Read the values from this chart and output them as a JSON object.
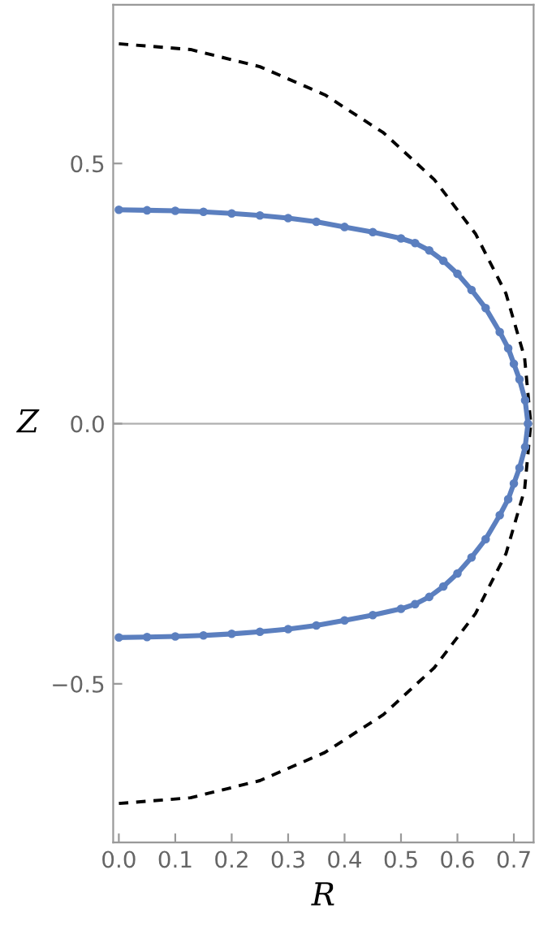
{
  "chart_data": {
    "type": "line",
    "xlabel": "R",
    "ylabel": "Z",
    "xlim": [
      -0.01,
      0.735
    ],
    "ylim": [
      -0.805,
      0.805
    ],
    "xticks": [
      {
        "value": 0,
        "label": "0.0"
      },
      0.1,
      0.2,
      0.3,
      0.4,
      0.5,
      0.6,
      0.7
    ],
    "yticks": [
      {
        "value": -0.5,
        "label": "−0.5"
      },
      {
        "value": 0,
        "label": "0.0"
      },
      0.5
    ],
    "grid": false,
    "ref_lines": [
      {
        "axis": "y",
        "value": 0,
        "color": "#b0b0b0"
      }
    ],
    "series": [
      {
        "color": "#000000",
        "line_style": "dashed",
        "marker": "none",
        "x": [
          0,
          0.127,
          0.25,
          0.365,
          0.469,
          0.559,
          0.632,
          0.686,
          0.719,
          0.73,
          0.719,
          0.686,
          0.632,
          0.559,
          0.469,
          0.365,
          0.25,
          0.127,
          0
        ],
        "values": [
          0.73,
          0.719,
          0.686,
          0.632,
          0.559,
          0.469,
          0.365,
          0.25,
          0.127,
          0,
          -0.127,
          -0.25,
          -0.365,
          -0.469,
          -0.559,
          -0.632,
          -0.686,
          -0.719,
          -0.73
        ]
      },
      {
        "color": "#5b7fbf",
        "line_style": "solid",
        "marker": "circle",
        "x": [
          0,
          0.05,
          0.1,
          0.15,
          0.2,
          0.25,
          0.3,
          0.35,
          0.4,
          0.45,
          0.5,
          0.525,
          0.55,
          0.575,
          0.6,
          0.625,
          0.65,
          0.675,
          0.69,
          0.7,
          0.71,
          0.72,
          0.725,
          0.72,
          0.71,
          0.7,
          0.69,
          0.675,
          0.65,
          0.625,
          0.6,
          0.575,
          0.55,
          0.525,
          0.5,
          0.45,
          0.4,
          0.35,
          0.3,
          0.25,
          0.2,
          0.15,
          0.1,
          0.05,
          0
        ],
        "values": [
          0.411,
          0.41,
          0.409,
          0.407,
          0.404,
          0.4,
          0.395,
          0.388,
          0.378,
          0.368,
          0.356,
          0.347,
          0.333,
          0.313,
          0.288,
          0.257,
          0.222,
          0.176,
          0.145,
          0.115,
          0.085,
          0.045,
          0,
          -0.045,
          -0.085,
          -0.115,
          -0.145,
          -0.176,
          -0.222,
          -0.257,
          -0.288,
          -0.313,
          -0.333,
          -0.347,
          -0.356,
          -0.368,
          -0.378,
          -0.388,
          -0.395,
          -0.4,
          -0.404,
          -0.407,
          -0.409,
          -0.41,
          -0.411
        ]
      }
    ]
  }
}
